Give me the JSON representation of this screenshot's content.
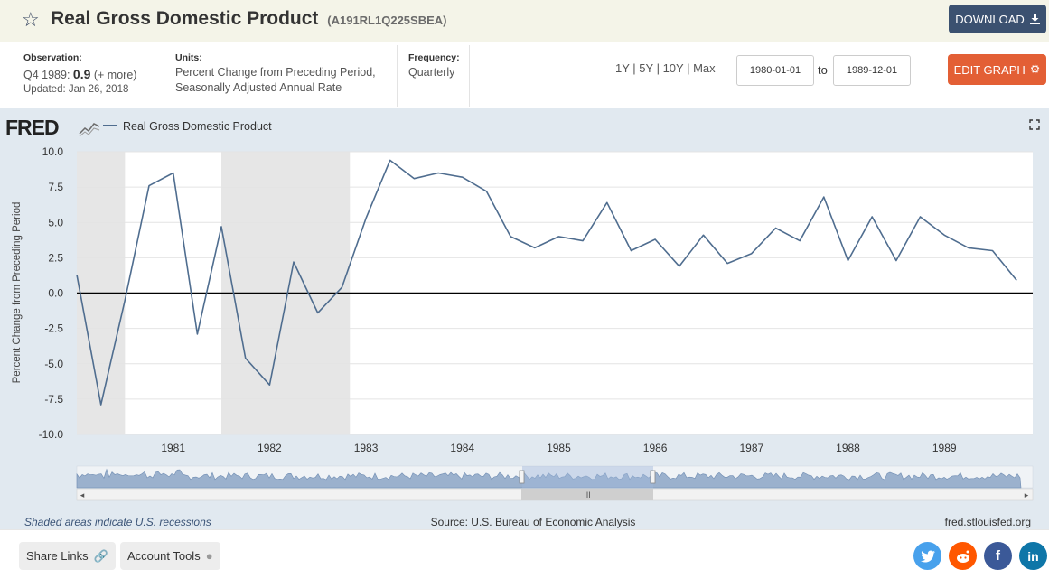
{
  "header": {
    "title": "Real Gross Domestic Product",
    "series_id": "(A191RL1Q225SBEA)",
    "download_label": "DOWNLOAD"
  },
  "observation": {
    "label": "Observation:",
    "period": "Q4 1989:",
    "value": "0.9",
    "more": "(+ more)",
    "updated": "Updated: Jan 26, 2018"
  },
  "units": {
    "label": "Units:",
    "line1": "Percent Change from Preceding Period,",
    "line2": "Seasonally Adjusted Annual Rate"
  },
  "frequency": {
    "label": "Frequency:",
    "value": "Quarterly"
  },
  "range": {
    "links": [
      "1Y",
      "5Y",
      "10Y",
      "Max"
    ],
    "start": "1980-01-01",
    "to_label": "to",
    "end": "1989-12-01",
    "edit_label": "EDIT GRAPH"
  },
  "graph": {
    "logo": "FRED",
    "legend": "Real Gross Domestic Product",
    "recession_note": "Shaded areas indicate U.S. recessions",
    "source": "Source: U.S. Bureau of Economic Analysis",
    "site": "fred.stlouisfed.org",
    "navigator_handle": "III"
  },
  "footer": {
    "share_label": "Share Links",
    "account_label": "Account Tools"
  },
  "social": [
    "twitter-icon",
    "reddit-icon",
    "facebook-icon",
    "linkedin-icon"
  ],
  "colors": {
    "line": "#4f6d8f",
    "recession": "#e6e6e6",
    "download": "#3b5170",
    "edit": "#e35f35",
    "panel": "#e1e9f0",
    "twitter": "#48a1ec",
    "reddit": "#ff5700",
    "facebook": "#3b5998",
    "linkedin": "#0e76a8"
  },
  "chart_data": {
    "type": "line",
    "title": "",
    "xlabel": "",
    "ylabel": "Percent Change from Preceding Period",
    "ylim": [
      -10,
      10
    ],
    "yticks": [
      "10.0",
      "7.5",
      "5.0",
      "2.5",
      "0.0",
      "-2.5",
      "-5.0",
      "-7.5",
      "-10.0"
    ],
    "xticks": [
      "1981",
      "1982",
      "1983",
      "1984",
      "1985",
      "1986",
      "1987",
      "1988",
      "1989"
    ],
    "grid": true,
    "legend_position": "top-left",
    "recessions": [
      [
        "1980-01",
        "1980-07"
      ],
      [
        "1981-07",
        "1982-11"
      ]
    ],
    "series": [
      {
        "name": "Real Gross Domestic Product",
        "x": [
          "1980-Q1",
          "1980-Q2",
          "1980-Q3",
          "1980-Q4",
          "1981-Q1",
          "1981-Q2",
          "1981-Q3",
          "1981-Q4",
          "1982-Q1",
          "1982-Q2",
          "1982-Q3",
          "1982-Q4",
          "1983-Q1",
          "1983-Q2",
          "1983-Q3",
          "1983-Q4",
          "1984-Q1",
          "1984-Q2",
          "1984-Q3",
          "1984-Q4",
          "1985-Q1",
          "1985-Q2",
          "1985-Q3",
          "1985-Q4",
          "1986-Q1",
          "1986-Q2",
          "1986-Q3",
          "1986-Q4",
          "1987-Q1",
          "1987-Q2",
          "1987-Q3",
          "1987-Q4",
          "1988-Q1",
          "1988-Q2",
          "1988-Q3",
          "1988-Q4",
          "1989-Q1",
          "1989-Q2",
          "1989-Q3",
          "1989-Q4"
        ],
        "values": [
          1.3,
          -7.9,
          -0.5,
          7.6,
          8.5,
          -2.9,
          4.7,
          -4.6,
          -6.5,
          2.2,
          -1.4,
          0.4,
          5.3,
          9.4,
          8.1,
          8.5,
          8.2,
          7.2,
          4.0,
          3.2,
          4.0,
          3.7,
          6.4,
          3.0,
          3.8,
          1.9,
          4.1,
          2.1,
          2.8,
          4.6,
          3.7,
          6.8,
          2.3,
          5.4,
          2.3,
          5.4,
          4.1,
          3.2,
          3.0,
          0.9
        ]
      }
    ]
  }
}
